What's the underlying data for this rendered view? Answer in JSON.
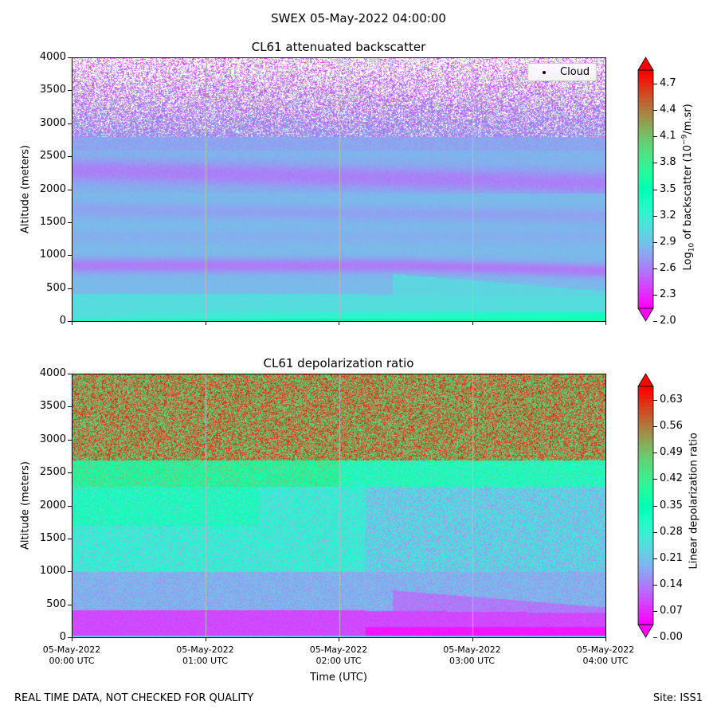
{
  "suptitle": "SWEX 05-May-2022 04:00:00",
  "footer_left": "REAL TIME DATA, NOT CHECKED FOR QUALITY",
  "footer_right": "Site: ISS1",
  "xlabel": "Time (UTC)",
  "xticks": [
    {
      "date": "05-May-2022",
      "time": "00:00 UTC"
    },
    {
      "date": "05-May-2022",
      "time": "01:00 UTC"
    },
    {
      "date": "05-May-2022",
      "time": "02:00 UTC"
    },
    {
      "date": "05-May-2022",
      "time": "03:00 UTC"
    },
    {
      "date": "05-May-2022",
      "time": "04:00 UTC"
    }
  ],
  "chart_data": [
    {
      "type": "heatmap",
      "title": "CL61 attenuated backscatter",
      "ylabel": "Altitude (meters)",
      "xrange_hours_utc": [
        0,
        4
      ],
      "ylim": [
        0,
        4000
      ],
      "yticks": [
        "0",
        "500",
        "1000",
        "1500",
        "2000",
        "2500",
        "3000",
        "3500",
        "4000"
      ],
      "colorbar_label": "Log10 of backscatter (10^-9/m.sr)",
      "colorbar_label_parts": {
        "pre": "Log",
        "sub": "10",
        "mid": " of backscatter (10",
        "sup": "−9",
        "post": "/m.sr)"
      },
      "colorbar_range": [
        2.0,
        5.0
      ],
      "colorbar_ticks": [
        "2.0",
        "2.3",
        "2.6",
        "2.9",
        "3.2",
        "3.5",
        "3.8",
        "4.1",
        "4.4",
        "4.7"
      ],
      "colormap": "rainbow",
      "legend": [
        "Cloud"
      ]
    },
    {
      "type": "heatmap",
      "title": "CL61 depolarization ratio",
      "ylabel": "Altitude (meters)",
      "xrange_hours_utc": [
        0,
        4
      ],
      "ylim": [
        0,
        4000
      ],
      "yticks": [
        "0",
        "500",
        "1000",
        "1500",
        "2000",
        "2500",
        "3000",
        "3500",
        "4000"
      ],
      "colorbar_label": "Linear depolarization ratio",
      "colorbar_range": [
        0.0,
        0.7
      ],
      "colorbar_ticks": [
        "0.00",
        "0.07",
        "0.14",
        "0.21",
        "0.28",
        "0.35",
        "0.42",
        "0.49",
        "0.56",
        "0.63"
      ],
      "colormap": "rainbow"
    }
  ]
}
